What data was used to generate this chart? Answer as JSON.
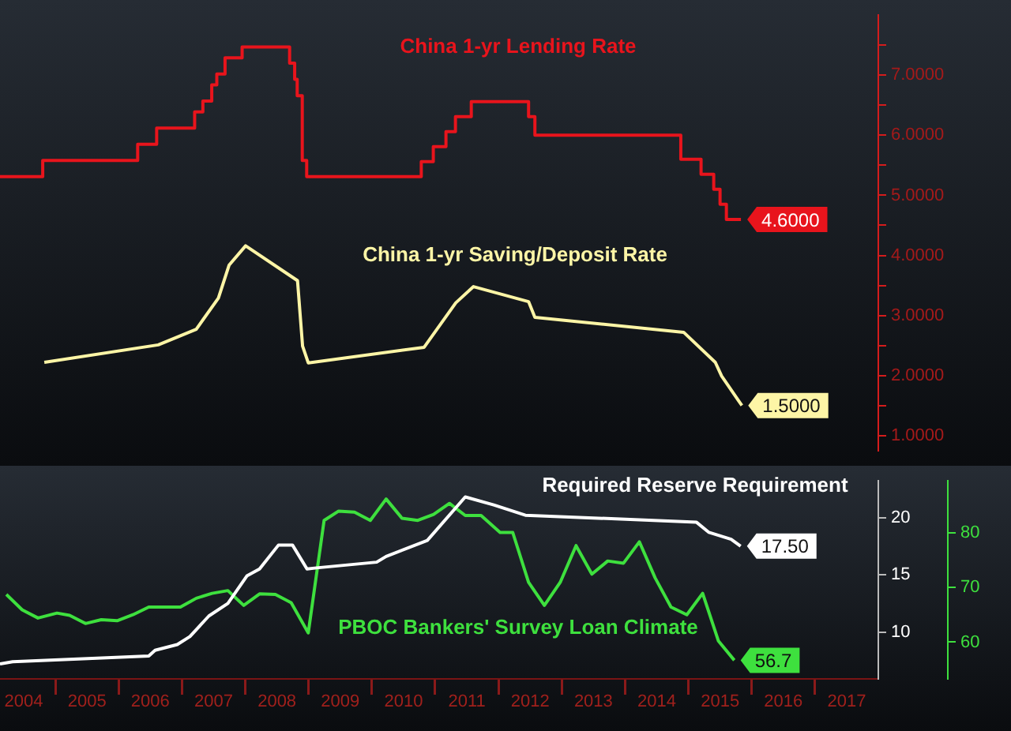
{
  "chart_data": [
    {
      "type": "line",
      "xlim": [
        2004.125,
        2018.0
      ],
      "ylim": [
        0.75,
        8.0
      ],
      "tick_labels": "y",
      "yticks": [
        {
          "value": 1,
          "label": "1.0000"
        },
        {
          "value": 1.5,
          "label": null
        },
        {
          "value": 2,
          "label": "2.0000"
        },
        {
          "value": 2.5,
          "label": null
        },
        {
          "value": 3,
          "label": "3.0000"
        },
        {
          "value": 3.5,
          "label": null
        },
        {
          "value": 4,
          "label": "4.0000"
        },
        {
          "value": 4.5,
          "label": null
        },
        {
          "value": 5,
          "label": "5.0000"
        },
        {
          "value": 5.5,
          "label": null
        },
        {
          "value": 6,
          "label": "6.0000"
        },
        {
          "value": 6.5,
          "label": null
        },
        {
          "value": 7,
          "label": "7.0000"
        },
        {
          "value": 7.5,
          "label": null
        }
      ],
      "marker": "none",
      "series": [
        {
          "name": "China 1-yr Lending Rate",
          "type": "step",
          "color": "#e8141c",
          "x": [
            2004.125,
            2004.8,
            2006.3,
            2006.6,
            2007.2,
            2007.33,
            2007.47,
            2007.55,
            2007.68,
            2007.95,
            2008.7,
            2008.78,
            2008.82,
            2008.9,
            2008.97,
            2010.78,
            2010.97,
            2011.17,
            2011.32,
            2011.57,
            2012.475,
            2012.575,
            2014.88,
            2015.2,
            2015.4,
            2015.5,
            2015.6,
            2015.83
          ],
          "values": [
            5.31,
            5.58,
            5.85,
            6.12,
            6.39,
            6.57,
            6.84,
            7.02,
            7.29,
            7.47,
            7.2,
            6.93,
            6.66,
            5.58,
            5.31,
            5.56,
            5.81,
            6.06,
            6.31,
            6.56,
            6.31,
            6.0,
            5.6,
            5.35,
            5.1,
            4.85,
            4.6,
            4.6
          ],
          "value_labels": [
            null,
            null,
            null,
            null,
            null,
            null,
            null,
            null,
            null,
            null,
            null,
            null,
            null,
            null,
            null,
            null,
            null,
            null,
            null,
            null,
            null,
            null,
            null,
            null,
            null,
            null,
            null,
            "4.6000"
          ]
        },
        {
          "name": "China 1-yr Saving/Deposit Rate",
          "color": "#fdf5a6",
          "x": [
            2004.825,
            2006.625,
            2007.225,
            2007.575,
            2007.745,
            2008.005,
            2008.825,
            2008.905,
            2008.995,
            2010.825,
            2011.325,
            2011.605,
            2012.475,
            2012.575,
            2014.925,
            2015.425,
            2015.525,
            2015.845
          ],
          "values": [
            2.22,
            2.51,
            2.77,
            3.29,
            3.84,
            4.16,
            3.58,
            2.49,
            2.21,
            2.47,
            3.21,
            3.48,
            3.23,
            2.97,
            2.72,
            2.22,
            1.99,
            1.5
          ],
          "value_labels": [
            null,
            null,
            null,
            null,
            null,
            null,
            null,
            null,
            null,
            null,
            null,
            null,
            null,
            null,
            null,
            null,
            null,
            "1.5000"
          ]
        }
      ]
    },
    {
      "type": "line",
      "xlim": [
        2004.125,
        2018.0
      ],
      "ylim": [
        5.9,
        23.2
      ],
      "yticks": [
        10,
        15,
        20
      ],
      "y2lim": [
        53.3,
        89.4
      ],
      "y2ticks": [
        60,
        70,
        80
      ],
      "xticks": [
        {
          "value": 2004.5,
          "label": "2004"
        },
        {
          "value": 2005,
          "label": null
        },
        {
          "value": 2005.5,
          "label": "2005"
        },
        {
          "value": 2006,
          "label": null
        },
        {
          "value": 2006.5,
          "label": "2006"
        },
        {
          "value": 2007,
          "label": null
        },
        {
          "value": 2007.5,
          "label": "2007"
        },
        {
          "value": 2008,
          "label": null
        },
        {
          "value": 2008.5,
          "label": "2008"
        },
        {
          "value": 2009,
          "label": null
        },
        {
          "value": 2009.5,
          "label": "2009"
        },
        {
          "value": 2010,
          "label": null
        },
        {
          "value": 2010.5,
          "label": "2010"
        },
        {
          "value": 2011,
          "label": null
        },
        {
          "value": 2011.5,
          "label": "2011"
        },
        {
          "value": 2012,
          "label": null
        },
        {
          "value": 2012.5,
          "label": "2012"
        },
        {
          "value": 2013,
          "label": null
        },
        {
          "value": 2013.5,
          "label": "2013"
        },
        {
          "value": 2014,
          "label": null
        },
        {
          "value": 2014.5,
          "label": "2014"
        },
        {
          "value": 2015,
          "label": null
        },
        {
          "value": 2015.5,
          "label": "2015"
        },
        {
          "value": 2016,
          "label": null
        },
        {
          "value": 2016.5,
          "label": "2016"
        },
        {
          "value": 2017,
          "label": null
        },
        {
          "value": 2017.5,
          "label": "2017"
        }
      ],
      "marker": "none",
      "series": [
        {
          "name": "Required Reserve Requirement",
          "color": "#ffffff",
          "x": [
            2004.125,
            2004.325,
            2006.475,
            2006.575,
            2006.925,
            2007.125,
            2007.425,
            2007.725,
            2008.025,
            2008.225,
            2008.525,
            2008.745,
            2008.975,
            2009.125,
            2010.075,
            2010.225,
            2010.875,
            2011.475,
            2011.925,
            2012.425,
            2015.125,
            2015.325,
            2015.675,
            2015.825
          ],
          "values": [
            7.2,
            7.4,
            7.9,
            8.4,
            8.9,
            9.6,
            11.4,
            12.5,
            14.9,
            15.5,
            17.6,
            17.6,
            15.5,
            15.6,
            16.1,
            16.6,
            18.0,
            21.8,
            21.1,
            20.2,
            19.6,
            18.7,
            18.1,
            17.5
          ],
          "value_labels": [
            null,
            null,
            null,
            null,
            null,
            null,
            null,
            null,
            null,
            null,
            null,
            null,
            null,
            null,
            null,
            null,
            null,
            null,
            null,
            null,
            null,
            null,
            null,
            "17.50"
          ]
        },
        {
          "name": "PBOC Bankers' Survey Loan Climate",
          "color": "#3ee03e",
          "axis": "y2",
          "x": [
            2004.225,
            2004.475,
            2004.725,
            2005.025,
            2005.225,
            2005.475,
            2005.725,
            2005.975,
            2006.225,
            2006.475,
            2006.975,
            2007.225,
            2007.475,
            2007.725,
            2007.975,
            2008.225,
            2008.475,
            2008.725,
            2008.995,
            2009.245,
            2009.475,
            2009.725,
            2009.975,
            2010.225,
            2010.475,
            2010.725,
            2010.975,
            2011.225,
            2011.475,
            2011.725,
            2012.025,
            2012.225,
            2012.475,
            2012.725,
            2012.975,
            2013.225,
            2013.475,
            2013.725,
            2013.975,
            2014.225,
            2014.475,
            2014.725,
            2014.975,
            2015.225,
            2015.475,
            2015.725
          ],
          "values": [
            68.7,
            65.9,
            64.4,
            65.3,
            64.9,
            63.4,
            64.1,
            63.9,
            65.0,
            66.4,
            66.4,
            68.0,
            68.9,
            69.4,
            66.7,
            68.8,
            68.7,
            67.2,
            61.7,
            82.2,
            83.9,
            83.7,
            82.2,
            86.1,
            82.6,
            82.2,
            83.3,
            85.3,
            83.1,
            83.1,
            80.0,
            80.0,
            70.9,
            66.7,
            70.9,
            77.6,
            72.4,
            74.8,
            74.4,
            78.3,
            71.7,
            66.4,
            65.0,
            68.9,
            60.2,
            56.7
          ],
          "value_labels": [
            null,
            null,
            null,
            null,
            null,
            null,
            null,
            null,
            null,
            null,
            null,
            null,
            null,
            null,
            null,
            null,
            null,
            null,
            null,
            null,
            null,
            null,
            null,
            null,
            null,
            null,
            null,
            null,
            null,
            null,
            null,
            null,
            null,
            null,
            null,
            null,
            null,
            null,
            null,
            null,
            null,
            null,
            null,
            null,
            null,
            "56.7"
          ]
        }
      ]
    }
  ]
}
